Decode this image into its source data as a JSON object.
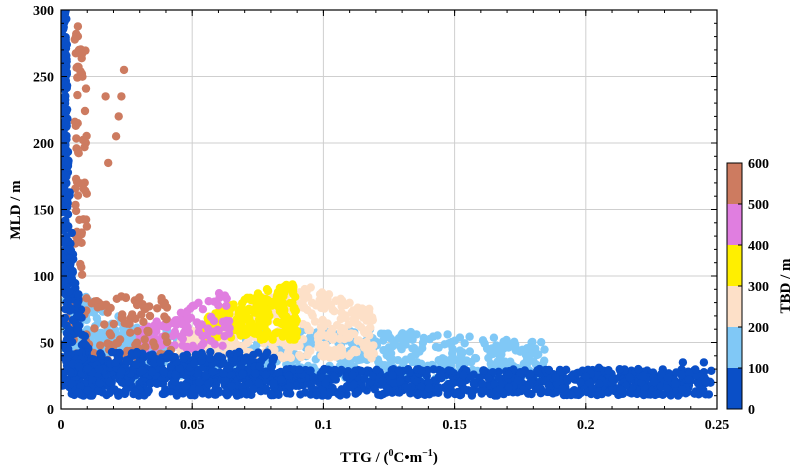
{
  "chart_data": {
    "type": "scatter",
    "xlabel": "TTG / (",
    "xlabel_sup1": "0",
    "xlabel_mid": "C•m",
    "xlabel_sup2": "−1",
    "xlabel_end": ")",
    "ylabel": "MLD / m",
    "xlim": [
      0,
      0.25
    ],
    "ylim": [
      0,
      300
    ],
    "x_ticks": [
      "0",
      "0.05",
      "0.1",
      "0.15",
      "0.2",
      "0.25"
    ],
    "y_ticks": [
      "0",
      "50",
      "100",
      "150",
      "200",
      "250",
      "300"
    ],
    "grid": true,
    "colorbar": {
      "label": "TBD / m",
      "ticks": [
        "0",
        "100",
        "200",
        "300",
        "400",
        "500",
        "600"
      ],
      "range": [
        0,
        600
      ],
      "bins": [
        {
          "range": [
            0,
            100
          ],
          "color": "#0a4fc7"
        },
        {
          "range": [
            100,
            200
          ],
          "color": "#80c8f6"
        },
        {
          "range": [
            200,
            300
          ],
          "color": "#fde0c8"
        },
        {
          "range": [
            300,
            400
          ],
          "color": "#ffef00"
        },
        {
          "range": [
            400,
            500
          ],
          "color": "#e07ee0"
        },
        {
          "range": [
            500,
            600
          ],
          "color": "#cd7b60"
        }
      ]
    },
    "color_by": "TBD",
    "clusters": [
      {
        "tbd_bin": "0-100",
        "approx_extent": {
          "x": [
            0,
            0.25
          ],
          "y": [
            10,
            30
          ]
        }
      },
      {
        "tbd_bin": "0-100",
        "approx_extent": {
          "x": [
            0,
            0.015
          ],
          "y": [
            10,
            300
          ]
        }
      },
      {
        "tbd_bin": "100-200",
        "approx_extent": {
          "x": [
            0,
            0.185
          ],
          "y": [
            20,
            60
          ]
        }
      },
      {
        "tbd_bin": "200-300",
        "approx_extent": {
          "x": [
            0.04,
            0.12
          ],
          "y": [
            35,
            95
          ]
        }
      },
      {
        "tbd_bin": "300-400",
        "approx_extent": {
          "x": [
            0.055,
            0.09
          ],
          "y": [
            55,
            95
          ]
        }
      },
      {
        "tbd_bin": "400-500",
        "approx_extent": {
          "x": [
            0.03,
            0.065
          ],
          "y": [
            45,
            95
          ]
        }
      },
      {
        "tbd_bin": "500-600",
        "approx_extent": {
          "x": [
            0.002,
            0.045
          ],
          "y": [
            20,
            295
          ]
        }
      }
    ]
  }
}
